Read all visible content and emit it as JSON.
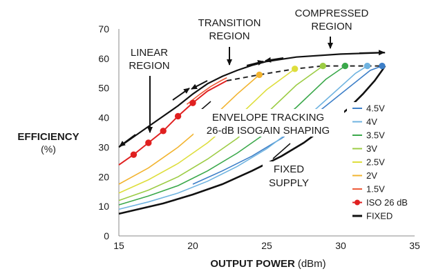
{
  "chart_data": {
    "type": "line",
    "title": "",
    "ylabel": {
      "bold": "EFFICIENCY",
      "normal": "(%)"
    },
    "xlabel": {
      "bold": "OUTPUT POWER",
      "normal": "(dBm)"
    },
    "xlim": [
      15,
      35
    ],
    "ylim": [
      0,
      70
    ],
    "xticks": [
      "15",
      "20",
      "25",
      "30",
      "35"
    ],
    "yticks": [
      "0",
      "10",
      "20",
      "30",
      "40",
      "50",
      "60",
      "70"
    ],
    "grid": false,
    "legend_position": "right",
    "annotations": {
      "linear": [
        "LINEAR",
        "REGION"
      ],
      "transition": [
        "TRANSITION",
        "REGION"
      ],
      "compressed": [
        "COMPRESSED",
        "REGION"
      ],
      "envelope": [
        "ENVELOPE TRACKING",
        "26-dB ISOGAIN SHAPING"
      ],
      "fixed": [
        "FIXED",
        "SUPPLY"
      ]
    },
    "colors": {
      "4.5V": "#3d7fc8",
      "4V": "#6fb3e0",
      "3.5V": "#3aa84a",
      "3V": "#9ccc44",
      "2.5V": "#dede3c",
      "2V": "#f2b430",
      "1.5V": "#ee5a38",
      "ISO 26 dB": "#e02020",
      "FIXED": "#111111",
      "region": "#111111",
      "envelope": "#222222"
    },
    "series": [
      {
        "name": "4.5V",
        "x": [
          20,
          22,
          24,
          26,
          28,
          30,
          31,
          32,
          32.8
        ],
        "y": [
          17.5,
          22,
          27,
          33,
          40,
          48,
          52,
          56,
          57.5
        ]
      },
      {
        "name": "4V",
        "x": [
          15,
          17,
          19,
          21,
          23,
          25,
          27,
          29,
          31,
          31.8
        ],
        "y": [
          9,
          11.5,
          14.5,
          18.5,
          23.5,
          29.5,
          37,
          46,
          55,
          57.5
        ]
      },
      {
        "name": "3.5V",
        "x": [
          15,
          17,
          19,
          21,
          23,
          25,
          27,
          29,
          30.3
        ],
        "y": [
          10.5,
          13.5,
          17,
          22,
          28,
          35,
          43.5,
          53,
          57.5
        ]
      },
      {
        "name": "3V",
        "x": [
          15,
          17,
          19,
          21,
          23,
          25,
          27,
          28.8
        ],
        "y": [
          12,
          15.5,
          20,
          26,
          33,
          41.5,
          51,
          57.5
        ]
      },
      {
        "name": "2.5V",
        "x": [
          15,
          17,
          19,
          21,
          23,
          25,
          26.9
        ],
        "y": [
          14.5,
          19,
          24.5,
          31.5,
          40,
          49.5,
          56.5
        ]
      },
      {
        "name": "2V",
        "x": [
          15,
          17,
          19,
          21,
          23,
          24.5
        ],
        "y": [
          17.5,
          23,
          30,
          38.5,
          48,
          54.5
        ]
      },
      {
        "name": "1.5V",
        "x": [
          19.6,
          20.5,
          21.2,
          21.9,
          22.3
        ],
        "y": [
          44.5,
          48,
          50.5,
          52.5,
          53.5
        ]
      },
      {
        "name": "ISO 26 dB",
        "x": [
          15,
          16,
          17,
          18,
          19,
          20,
          21,
          22.3,
          24.5,
          26.9,
          28.8,
          30.3,
          31.8,
          32.8
        ],
        "y": [
          24,
          27.5,
          31.5,
          35.5,
          40.5,
          45,
          49,
          52.5,
          54.5,
          56.5,
          57.5,
          57.5,
          57.5,
          57.5
        ]
      },
      {
        "name": "FIXED",
        "x": [
          15,
          18,
          20,
          22,
          24,
          26,
          27.5,
          29,
          30.5,
          31.5,
          32.3,
          32.8,
          33
        ],
        "y": [
          7.5,
          11,
          14,
          17.5,
          22,
          27,
          31.5,
          37,
          43,
          48,
          52.5,
          56,
          57.5
        ]
      }
    ],
    "markers": {
      "ISO 26 dB": [
        {
          "x": 16,
          "y": 27.5,
          "color": "#e02020"
        },
        {
          "x": 17,
          "y": 31.5,
          "color": "#e02020"
        },
        {
          "x": 18,
          "y": 35.5,
          "color": "#e02020"
        },
        {
          "x": 19,
          "y": 40.5,
          "color": "#e02020"
        },
        {
          "x": 20,
          "y": 45,
          "color": "#e02020"
        },
        {
          "x": 24.5,
          "y": 54.5,
          "color": "#f2b430"
        },
        {
          "x": 26.9,
          "y": 56.5,
          "color": "#dede3c"
        },
        {
          "x": 28.8,
          "y": 57.5,
          "color": "#9ccc44"
        },
        {
          "x": 30.3,
          "y": 57.5,
          "color": "#3aa84a"
        },
        {
          "x": 31.8,
          "y": 57.5,
          "color": "#6fb3e0"
        },
        {
          "x": 32.8,
          "y": 57.5,
          "color": "#3d7fc8"
        }
      ]
    },
    "region_curve": {
      "x": [
        15,
        17,
        19,
        20,
        21,
        22,
        23,
        24,
        25,
        27,
        30,
        33
      ],
      "y": [
        30,
        37,
        44,
        48,
        51.5,
        54,
        56,
        57.7,
        59,
        60.5,
        61.5,
        62
      ]
    },
    "legend": [
      "4.5V",
      "4V",
      "3.5V",
      "3V",
      "2.5V",
      "2V",
      "1.5V",
      "ISO 26 dB",
      "FIXED"
    ]
  }
}
